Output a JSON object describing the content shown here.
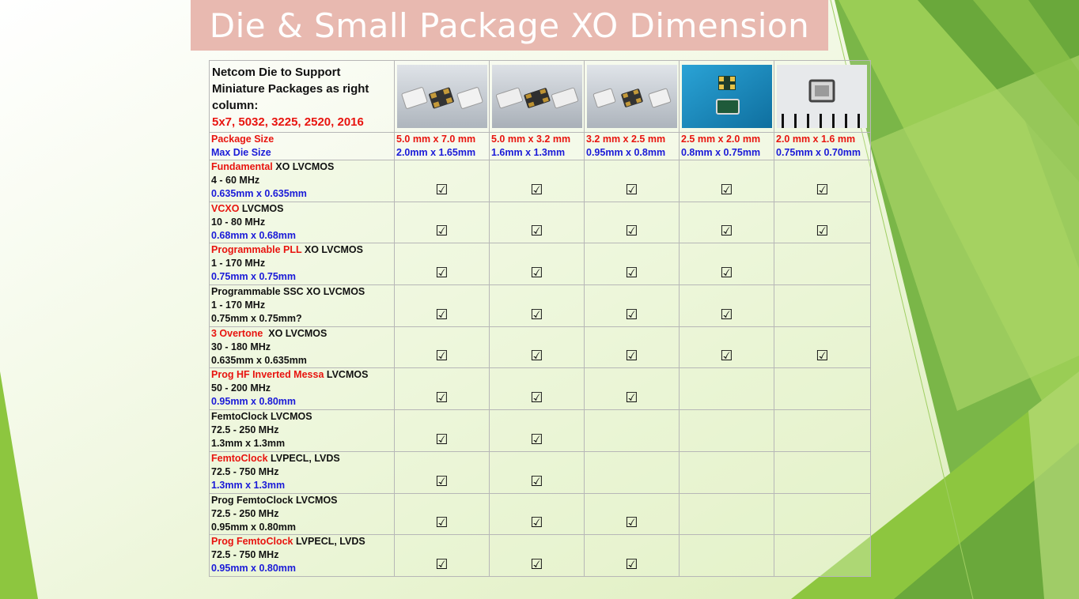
{
  "title": "Die & Small Package XO Dimension",
  "intro": {
    "line1": "Netcom Die to Support",
    "line2": "Miniature Packages as right",
    "line3": "column:",
    "sizes": "5x7, 5032, 3225, 2520, 2016"
  },
  "size_row": {
    "package_label": "Package Size",
    "die_label": "Max Die Size"
  },
  "packages": [
    {
      "package": "5.0 mm x 7.0 mm",
      "die": "2.0mm x 1.65mm",
      "image": "crystal-5x7-photo"
    },
    {
      "package": "5.0 mm x 3.2 mm",
      "die": "1.6mm x 1.3mm",
      "image": "crystal-5032-photo"
    },
    {
      "package": "3.2 mm x 2.5 mm",
      "die": "0.95mm x 0.8mm",
      "image": "crystal-3225-photo"
    },
    {
      "package": "2.5 mm x 2.0 mm",
      "die": "0.8mm x 0.75mm",
      "image": "crystal-2520-photo"
    },
    {
      "package": "2.0 mm x 1.6 mm",
      "die": "0.75mm x 0.70mm",
      "image": "crystal-2016-photo"
    }
  ],
  "check_glyph": "☑",
  "rows": [
    {
      "name_red": "Fundamental",
      "name_rest": " XO LVCMOS",
      "freq": "4 - 60 MHz",
      "die": "0.635mm x 0.635mm",
      "die_color": "blue",
      "checks": [
        true,
        true,
        true,
        true,
        true
      ]
    },
    {
      "name_red": "VCXO",
      "name_rest": " LVCMOS",
      "freq": "10 - 80 MHz",
      "die": "0.68mm x 0.68mm",
      "die_color": "blue",
      "checks": [
        true,
        true,
        true,
        true,
        true
      ]
    },
    {
      "name_red": "Programmable PLL",
      "name_rest": " XO LVCMOS",
      "freq": "1 - 170 MHz",
      "die": "0.75mm x 0.75mm",
      "die_color": "blue",
      "checks": [
        true,
        true,
        true,
        true,
        false
      ]
    },
    {
      "name_red": "",
      "name_rest": "Programmable SSC XO LVCMOS",
      "freq": "1 - 170 MHz",
      "die": "0.75mm x 0.75mm?",
      "die_color": "dark",
      "checks": [
        true,
        true,
        true,
        true,
        false
      ]
    },
    {
      "name_red": "3 Overtone",
      "name_rest": "  XO LVCMOS",
      "freq": "30 - 180 MHz",
      "die": "0.635mm x 0.635mm",
      "die_color": "dark",
      "checks": [
        true,
        true,
        true,
        true,
        true
      ]
    },
    {
      "name_red": "Prog HF Inverted Messa",
      "name_rest": " LVCMOS",
      "freq": "50 - 200 MHz",
      "die": "0.95mm x 0.80mm",
      "die_color": "blue",
      "checks": [
        true,
        true,
        true,
        false,
        false
      ]
    },
    {
      "name_red": "",
      "name_rest": "FemtoClock LVCMOS",
      "freq": "72.5 - 250 MHz",
      "die": "1.3mm x 1.3mm",
      "die_color": "dark",
      "checks": [
        true,
        true,
        false,
        false,
        false
      ]
    },
    {
      "name_red": "FemtoClock",
      "name_rest": " LVPECL, LVDS",
      "freq": "72.5 - 750 MHz",
      "die": "1.3mm x 1.3mm",
      "die_color": "blue",
      "checks": [
        true,
        true,
        false,
        false,
        false
      ]
    },
    {
      "name_red": "",
      "name_rest": "Prog FemtoClock LVCMOS",
      "freq": "72.5 - 250 MHz",
      "die": "0.95mm x 0.80mm",
      "die_color": "dark",
      "checks": [
        true,
        true,
        true,
        false,
        false
      ]
    },
    {
      "name_red": "Prog FemtoClock",
      "name_rest": " LVPECL, LVDS",
      "freq": "72.5 - 750 MHz",
      "die": "0.95mm x 0.80mm",
      "die_color": "blue",
      "checks": [
        true,
        true,
        true,
        false,
        false
      ]
    }
  ]
}
